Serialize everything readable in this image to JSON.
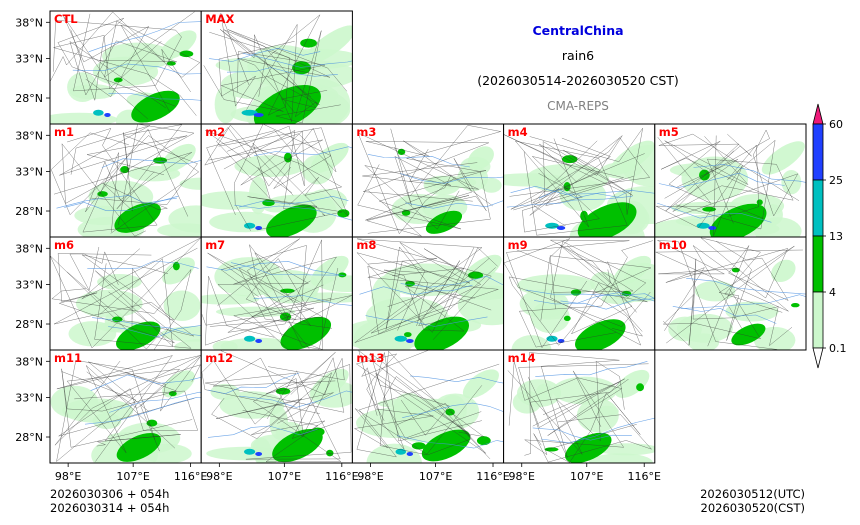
{
  "chart_data": {
    "type": "map-panels",
    "region": "CentralChina",
    "variable": "rain6",
    "period": "(2026030514-2026030520 CST)",
    "source": "CMA-REPS",
    "lon_ticks": [
      "98°E",
      "107°E",
      "116°E"
    ],
    "lat_ticks": [
      "38°N",
      "33°N",
      "28°N"
    ],
    "panels": [
      {
        "label": "CTL",
        "intensity": 0.55
      },
      {
        "label": "MAX",
        "intensity": 1.0
      },
      {
        "label": "m1",
        "intensity": 0.5
      },
      {
        "label": "m2",
        "intensity": 0.6
      },
      {
        "label": "m3",
        "intensity": 0.25
      },
      {
        "label": "m4",
        "intensity": 0.8
      },
      {
        "label": "m5",
        "intensity": 0.75
      },
      {
        "label": "m6",
        "intensity": 0.45
      },
      {
        "label": "m7",
        "intensity": 0.6
      },
      {
        "label": "m8",
        "intensity": 0.7
      },
      {
        "label": "m9",
        "intensity": 0.6
      },
      {
        "label": "m10",
        "intensity": 0.2
      },
      {
        "label": "m11",
        "intensity": 0.45
      },
      {
        "label": "m12",
        "intensity": 0.6
      },
      {
        "label": "m13",
        "intensity": 0.55
      },
      {
        "label": "m14",
        "intensity": 0.5
      }
    ],
    "colorbar": {
      "levels": [
        "0.1",
        "4",
        "13",
        "25",
        "60"
      ],
      "colors": [
        "#ccf7cc",
        "#00c000",
        "#00c0c0",
        "#2040ff"
      ],
      "under_color": "#ffffff",
      "over_color": "#ee1a7a"
    }
  },
  "footer": {
    "init_line1": "2026030306  +  054h",
    "init_line2": "2026030314  +  054h",
    "valid_utc": "2026030512(UTC)",
    "valid_cst": "2026030520(CST)"
  },
  "colors": {
    "light_rain": "#ccf7cc",
    "moderate_rain": "#00c000",
    "heavy_rain": "#00c0c0",
    "storm_rain": "#2040ff",
    "river": "#4a90e2",
    "border": "#333333"
  }
}
